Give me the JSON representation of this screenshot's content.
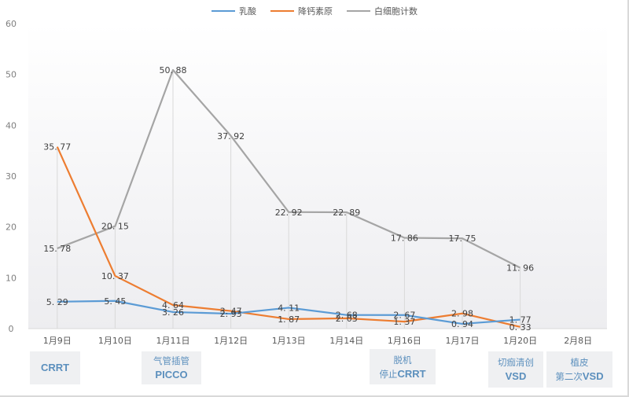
{
  "chart_data": {
    "type": "line",
    "title": "",
    "xlabel": "",
    "ylabel": "",
    "ylim": [
      0,
      60
    ],
    "yticks": [
      0,
      10,
      20,
      30,
      40,
      50,
      60
    ],
    "grid": "vertical drop lines at data points",
    "legend_position": "top",
    "categories": [
      "1月9日",
      "1月10日",
      "1月11日",
      "1月12日",
      "1月13日",
      "1月14日",
      "1月16日",
      "1月17日",
      "1月20日",
      "2月8日"
    ],
    "series": [
      {
        "name": "乳酸",
        "color": "#5b9bd5",
        "values": [
          5.29,
          5.45,
          3.26,
          2.93,
          4.11,
          2.68,
          2.67,
          0.94,
          1.77,
          null
        ],
        "labels": [
          "5. 29",
          "5. 45",
          "3. 26",
          "2. 93",
          "4. 11",
          "2. 68",
          "2. 67",
          "0. 94",
          "1. 77",
          ""
        ]
      },
      {
        "name": "降钙素原",
        "color": "#ed7d31",
        "values": [
          35.77,
          10.37,
          4.64,
          3.47,
          1.87,
          2.03,
          1.37,
          2.98,
          0.33,
          null
        ],
        "labels": [
          "35. 77",
          "10. 37",
          "4. 64",
          "3. 47",
          "1. 87",
          "2. 03",
          "1. 37",
          "2. 98",
          "0. 33",
          ""
        ]
      },
      {
        "name": "白细胞计数",
        "color": "#a5a5a5",
        "values": [
          15.78,
          20.15,
          50.88,
          37.92,
          22.92,
          22.89,
          17.86,
          17.75,
          11.96,
          null
        ],
        "labels": [
          "15. 78",
          "20. 15",
          "50. 88",
          "37. 92",
          "22. 92",
          "22. 89",
          "17. 86",
          "17. 75",
          "11. 96",
          ""
        ]
      }
    ],
    "annotations": [
      {
        "category": "1月9日",
        "lines": [
          {
            "text": "CRRT",
            "bold": true
          }
        ]
      },
      {
        "category": "1月11日",
        "lines": [
          {
            "text": "气管插管",
            "bold": false
          },
          {
            "text": "PICCO",
            "bold": true
          }
        ]
      },
      {
        "category": "1月16日",
        "lines": [
          {
            "text": "脱机",
            "bold": false
          },
          {
            "text": "停止",
            "bold": false,
            "inline_bold": "CRRT"
          }
        ]
      },
      {
        "category": "1月20日",
        "lines": [
          {
            "text": "切痂清创",
            "bold": false
          },
          {
            "text": "VSD",
            "bold": true
          }
        ]
      },
      {
        "category": "2月8日",
        "lines": [
          {
            "text": "植皮",
            "bold": false
          },
          {
            "text": "第二次",
            "bold": false,
            "inline_bold": "VSD"
          }
        ]
      }
    ]
  },
  "legend": [
    {
      "label": "乳酸",
      "color": "#5b9bd5"
    },
    {
      "label": "降钙素原",
      "color": "#ed7d31"
    },
    {
      "label": "白细胞计数",
      "color": "#a5a5a5"
    }
  ],
  "events": {
    "crrt": {
      "line1": "CRRT"
    },
    "picco": {
      "line1": "气管插管",
      "line2": "PICCO"
    },
    "wean": {
      "line1": "脱机",
      "line2a": "停止",
      "line2b": "CRRT"
    },
    "vsd1": {
      "line1": "切痂清创",
      "line2": "VSD"
    },
    "vsd2": {
      "line1": "植皮",
      "line2a": "第二次",
      "line2b": "VSD"
    }
  }
}
